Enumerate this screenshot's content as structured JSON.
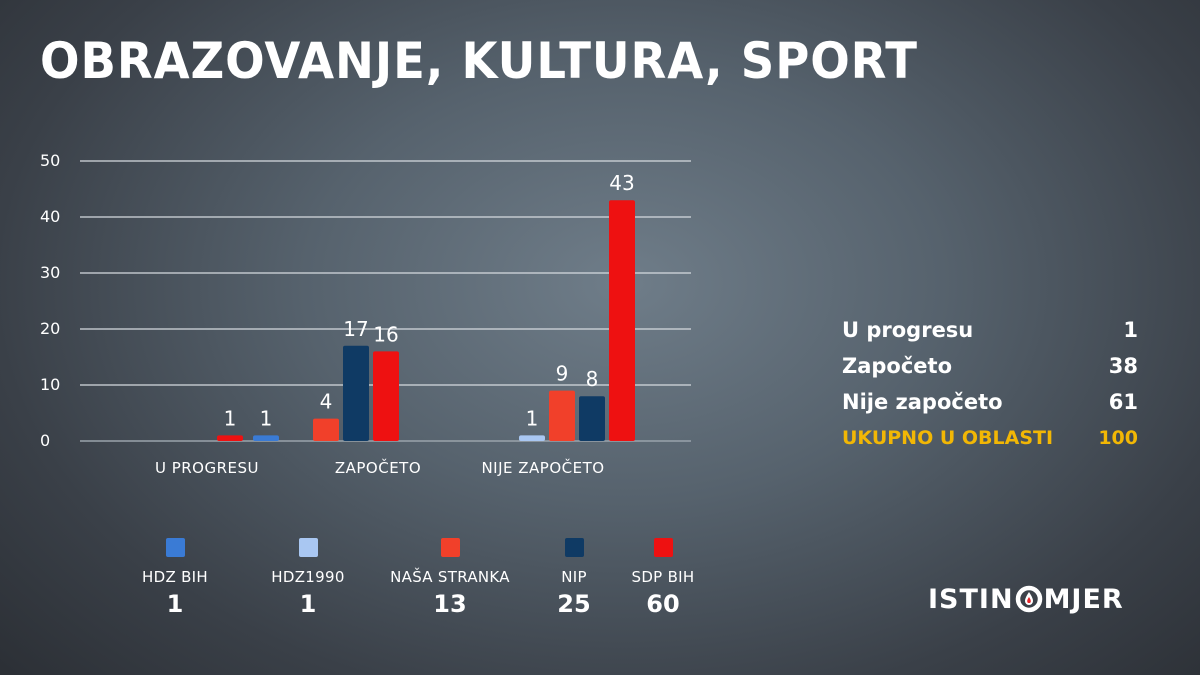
{
  "title": "OBRAZOVANJE, KULTURA, SPORT",
  "colors": {
    "hdz_bih": "#3a7bd5",
    "hdz1990": "#a9c7f2",
    "nasa_stranka": "#f1402a",
    "nip": "#0f3a64",
    "sdp_bih": "#ee1111",
    "accent": "#f2b705"
  },
  "chart_data": {
    "type": "bar",
    "ylim": [
      0,
      50
    ],
    "yticks": [
      0,
      10,
      20,
      30,
      40,
      50
    ],
    "grid": true,
    "legend_position": "bottom",
    "categories": [
      "U PROGRESU",
      "ZAPOČETO",
      "NIJE ZAPOČETO"
    ],
    "series": [
      {
        "name": "HDZ BIH",
        "color": "#3a7bd5",
        "values": [
          null,
          1,
          null
        ]
      },
      {
        "name": "HDZ1990",
        "color": "#a9c7f2",
        "values": [
          null,
          null,
          1
        ]
      },
      {
        "name": "NAŠA STRANKA",
        "color": "#f1402a",
        "values": [
          null,
          4,
          9
        ]
      },
      {
        "name": "NIP",
        "color": "#0f3a64",
        "values": [
          null,
          17,
          8
        ]
      },
      {
        "name": "SDP BIH",
        "color": "#ee1111",
        "values": [
          1,
          16,
          43
        ]
      }
    ]
  },
  "legend": [
    {
      "name": "HDZ BIH",
      "total": "1",
      "color": "#3a7bd5"
    },
    {
      "name": "HDZ1990",
      "total": "1",
      "color": "#a9c7f2"
    },
    {
      "name": "NAŠA STRANKA",
      "total": "13",
      "color": "#f1402a"
    },
    {
      "name": "NIP",
      "total": "25",
      "color": "#0f3a64"
    },
    {
      "name": "SDP BIH",
      "total": "60",
      "color": "#ee1111"
    }
  ],
  "summary": [
    {
      "label": "U progresu",
      "value": "1"
    },
    {
      "label": "Započeto",
      "value": "38"
    },
    {
      "label": "Nije započeto",
      "value": "61"
    }
  ],
  "summary_total": {
    "label": "UKUPNO U OBLASTI",
    "value": "100"
  },
  "logo": {
    "text_left": "ISTIN",
    "text_right": "MJER",
    "icon": "istinomjer-logo-mark"
  }
}
